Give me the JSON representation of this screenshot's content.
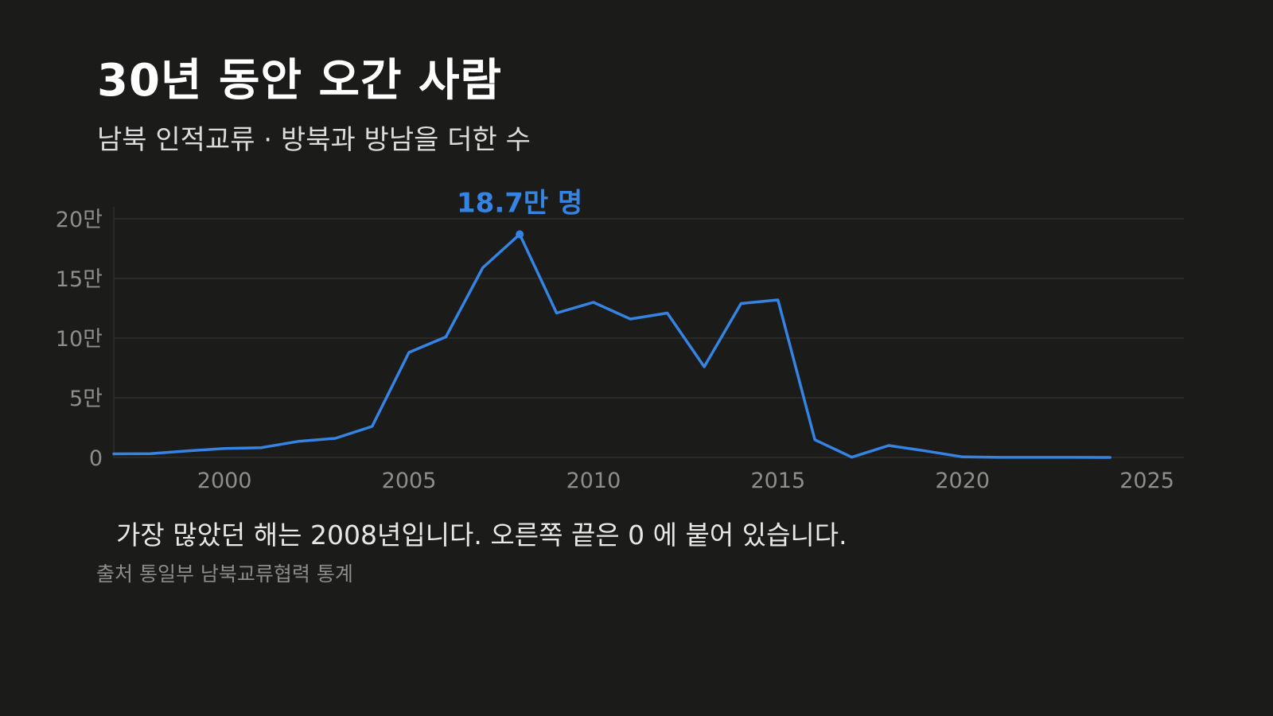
{
  "header": {
    "title": "30년 동안 오간 사람",
    "subtitle": "남북 인적교류 · 방북과 방남을 더한 수"
  },
  "footer": {
    "note": "가장 많았던 해는 2008년입니다. 오른쪽 끝은 0 에 붙어 있습니다.",
    "source": "출처 통일부 남북교류협력 통계"
  },
  "colors": {
    "background": "#1b1b1a",
    "line": "#3584e4",
    "grid": "#2e2e2d",
    "axis_text": "#8e8e8e"
  },
  "chart_data": {
    "type": "line",
    "x": [
      1997,
      1998,
      1999,
      2000,
      2001,
      2002,
      2003,
      2004,
      2005,
      2006,
      2007,
      2008,
      2009,
      2010,
      2011,
      2012,
      2013,
      2014,
      2015,
      2016,
      2017,
      2018,
      2019,
      2020,
      2021,
      2022,
      2023,
      2024
    ],
    "series": [
      {
        "values": [
          3000,
          3200,
          5500,
          7500,
          8200,
          13500,
          16000,
          26000,
          88000,
          101000,
          159000,
          187000,
          121000,
          130000,
          116000,
          121000,
          76000,
          129000,
          132000,
          14800,
          200,
          10000,
          5500,
          500,
          100,
          50,
          50,
          0
        ]
      }
    ],
    "xlim": [
      1997,
      2026
    ],
    "ylim": [
      0,
      200000
    ],
    "x_ticks": [
      2000,
      2005,
      2010,
      2015,
      2020,
      2025
    ],
    "y_ticks": [
      0,
      50000,
      100000,
      150000,
      200000
    ],
    "y_tick_labels": [
      "0",
      "5만",
      "10만",
      "15만",
      "20만"
    ],
    "grid": true,
    "annotation": {
      "x": 2008,
      "y": 187000,
      "text": "18.7만 명"
    }
  }
}
